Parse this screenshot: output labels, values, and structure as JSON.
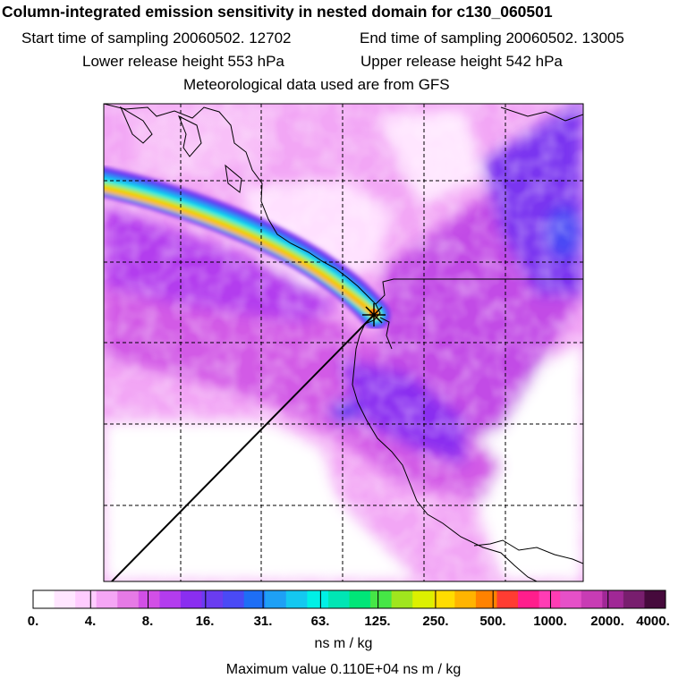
{
  "header": {
    "title": "Column-integrated emission sensitivity in nested domain for c130_060501",
    "start_time": "Start time of sampling 20060502. 12702",
    "end_time": "End time of sampling 20060502. 13005",
    "lower_height": "Lower release height  553 hPa",
    "upper_height": "Upper release height  542 hPa",
    "met_data": "Meteorological data used are from GFS"
  },
  "colorbar": {
    "tick_labels": [
      "0.",
      "4.",
      "8.",
      "16.",
      "31.",
      "63.",
      "125.",
      "250.",
      "500.",
      "1000.",
      "2000.",
      "4000."
    ],
    "units": "ns m / kg",
    "colors": [
      "#ffffff",
      "#ffe6ff",
      "#ffccff",
      "#f5a6f5",
      "#e67ae6",
      "#d24fe6",
      "#b33cee",
      "#8a2ef0",
      "#6a3cf0",
      "#4a4af5",
      "#1e6ef5",
      "#1ea0f5",
      "#14c8f0",
      "#00f0e6",
      "#00e6b4",
      "#00e678",
      "#46e646",
      "#a0e61e",
      "#dcf000",
      "#ffdc00",
      "#ffb400",
      "#ff8200",
      "#ff3c32",
      "#ff1e8c",
      "#ff3cb4",
      "#e650c8",
      "#c83cb4",
      "#a02896",
      "#781e6e",
      "#460a3c"
    ]
  },
  "max_value": "Maximum value  0.110E+04 ns m / kg",
  "map": {
    "receptor_marker": "star-cross",
    "plume_colors": [
      "#8a2ef0",
      "#4a4af5",
      "#1ea0f5",
      "#00f0e6",
      "#a0e61e",
      "#ffdc00",
      "#ffb400",
      "#ff8200"
    ]
  }
}
